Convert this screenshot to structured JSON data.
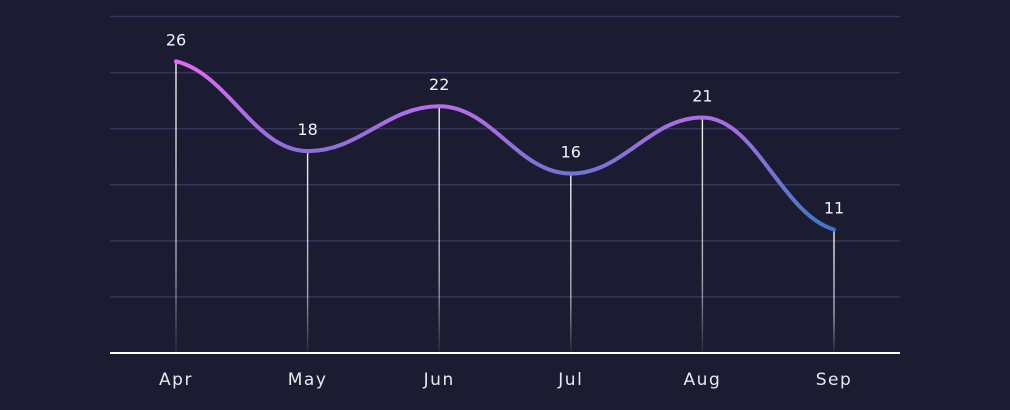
{
  "chart_data": {
    "type": "line",
    "categories": [
      "Apr",
      "May",
      "Jun",
      "Jul",
      "Aug",
      "Sep"
    ],
    "series": [
      {
        "values": [
          26,
          18,
          22,
          16,
          21,
          11
        ]
      }
    ],
    "ylim": [
      0,
      30
    ],
    "grid": true,
    "legend": "none",
    "smooth": true,
    "data_labels": true,
    "drop_lines": true
  },
  "colors": {
    "background": "#1b1c31",
    "grid": "#34365a",
    "axis": "#ffffff",
    "line_high": "#e368f5",
    "line_low": "#3d78c4",
    "text": "#e8e8ef"
  }
}
